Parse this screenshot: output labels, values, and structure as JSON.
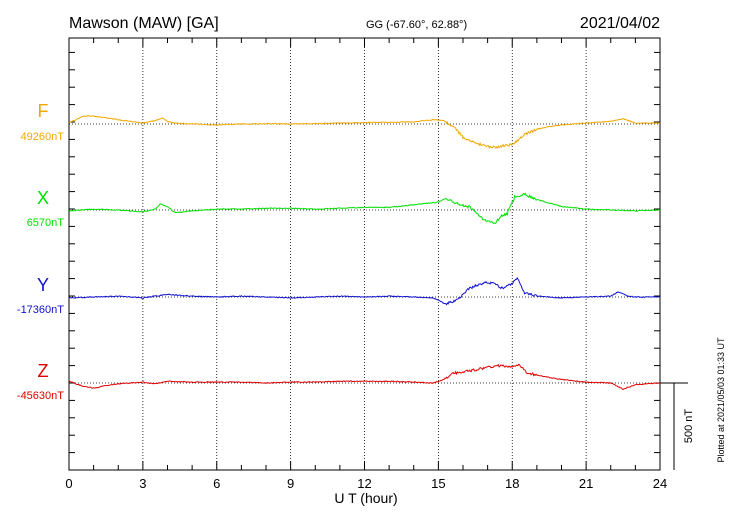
{
  "header": {
    "station": "Mawson (MAW)  [GA]",
    "coords": "GG (-67.60°,  62.88°)",
    "date": "2021/04/02"
  },
  "side_note": "Plotted at 2021/05/03 01:33 UT",
  "scale": {
    "label": "500 nT",
    "value_nt": 500
  },
  "chart_data": {
    "type": "line",
    "xlabel": "U T (hour)",
    "xlim": [
      0,
      24
    ],
    "xticks": [
      0,
      3,
      6,
      9,
      12,
      15,
      18,
      21,
      24
    ],
    "grid": true,
    "series": [
      {
        "name": "F",
        "baseline_label": "49260nT",
        "baseline_nt": 49260,
        "color": "#f0a800",
        "points": [
          [
            0,
            -8
          ],
          [
            0.6,
            -45
          ],
          [
            1.0,
            -45
          ],
          [
            1.5,
            -35
          ],
          [
            2.0,
            -25
          ],
          [
            2.5,
            -15
          ],
          [
            3.0,
            -5
          ],
          [
            3.5,
            -20
          ],
          [
            3.8,
            -35
          ],
          [
            4.0,
            -15
          ],
          [
            4.3,
            -5
          ],
          [
            5,
            0
          ],
          [
            6,
            5
          ],
          [
            7,
            0
          ],
          [
            8,
            -2
          ],
          [
            9,
            0
          ],
          [
            10,
            -2
          ],
          [
            11,
            -5
          ],
          [
            12,
            -8
          ],
          [
            13,
            -10
          ],
          [
            14,
            -12
          ],
          [
            14.8,
            -25
          ],
          [
            15.2,
            -20
          ],
          [
            15.6,
            15
          ],
          [
            16,
            75
          ],
          [
            16.5,
            110
          ],
          [
            17,
            130
          ],
          [
            17.3,
            135
          ],
          [
            17.6,
            125
          ],
          [
            18,
            120
          ],
          [
            18.5,
            60
          ],
          [
            19,
            30
          ],
          [
            19.5,
            15
          ],
          [
            20,
            5
          ],
          [
            21,
            -5
          ],
          [
            22,
            -15
          ],
          [
            22.5,
            -30
          ],
          [
            23,
            -5
          ],
          [
            24,
            -5
          ]
        ]
      },
      {
        "name": "X",
        "baseline_label": "6570nT",
        "baseline_nt": 6570,
        "color": "#00e000",
        "points": [
          [
            0,
            5
          ],
          [
            1,
            -5
          ],
          [
            2,
            0
          ],
          [
            3,
            10
          ],
          [
            3.5,
            -5
          ],
          [
            3.7,
            -35
          ],
          [
            4.0,
            -20
          ],
          [
            4.3,
            15
          ],
          [
            5,
            5
          ],
          [
            6,
            -5
          ],
          [
            7,
            -5
          ],
          [
            8,
            -10
          ],
          [
            9,
            -10
          ],
          [
            10,
            -5
          ],
          [
            11,
            -10
          ],
          [
            12,
            -15
          ],
          [
            13,
            -15
          ],
          [
            14,
            -30
          ],
          [
            15,
            -45
          ],
          [
            15.3,
            -65
          ],
          [
            15.8,
            -35
          ],
          [
            16.3,
            -15
          ],
          [
            16.8,
            50
          ],
          [
            17.3,
            80
          ],
          [
            17.5,
            40
          ],
          [
            17.8,
            20
          ],
          [
            18.1,
            -75
          ],
          [
            18.5,
            -90
          ],
          [
            19,
            -60
          ],
          [
            19.5,
            -40
          ],
          [
            20,
            -20
          ],
          [
            21,
            -5
          ],
          [
            22,
            0
          ],
          [
            23,
            5
          ],
          [
            24,
            0
          ]
        ]
      },
      {
        "name": "Y",
        "baseline_label": "-17360nT",
        "baseline_nt": -17360,
        "color": "#1010d0",
        "points": [
          [
            0,
            5
          ],
          [
            1,
            0
          ],
          [
            2,
            -5
          ],
          [
            3,
            5
          ],
          [
            4,
            -15
          ],
          [
            5,
            -5
          ],
          [
            6,
            0
          ],
          [
            7,
            -5
          ],
          [
            8,
            0
          ],
          [
            9,
            5
          ],
          [
            10,
            0
          ],
          [
            11,
            -5
          ],
          [
            12,
            0
          ],
          [
            13,
            -5
          ],
          [
            14,
            0
          ],
          [
            14.8,
            5
          ],
          [
            15.3,
            40
          ],
          [
            15.8,
            15
          ],
          [
            16.2,
            -45
          ],
          [
            16.6,
            -70
          ],
          [
            17.0,
            -85
          ],
          [
            17.3,
            -75
          ],
          [
            17.6,
            -50
          ],
          [
            18.0,
            -80
          ],
          [
            18.2,
            -105
          ],
          [
            18.5,
            -25
          ],
          [
            19,
            -5
          ],
          [
            20,
            5
          ],
          [
            21,
            0
          ],
          [
            22,
            -5
          ],
          [
            22.3,
            -30
          ],
          [
            22.7,
            -5
          ],
          [
            23,
            0
          ],
          [
            24,
            0
          ]
        ]
      },
      {
        "name": "Z",
        "baseline_label": "-45630nT",
        "baseline_nt": -45630,
        "color": "#e00000",
        "points": [
          [
            0,
            -10
          ],
          [
            0.5,
            15
          ],
          [
            1.0,
            30
          ],
          [
            1.5,
            15
          ],
          [
            2,
            5
          ],
          [
            3,
            -5
          ],
          [
            3.5,
            5
          ],
          [
            4,
            -10
          ],
          [
            5,
            -5
          ],
          [
            6,
            -5
          ],
          [
            7,
            -5
          ],
          [
            8,
            0
          ],
          [
            9,
            -5
          ],
          [
            10,
            -5
          ],
          [
            11,
            -10
          ],
          [
            12,
            -10
          ],
          [
            13,
            -10
          ],
          [
            14,
            -5
          ],
          [
            14.8,
            0
          ],
          [
            15.2,
            -20
          ],
          [
            15.6,
            -55
          ],
          [
            16,
            -65
          ],
          [
            16.5,
            -75
          ],
          [
            17,
            -90
          ],
          [
            17.5,
            -100
          ],
          [
            18,
            -95
          ],
          [
            18.3,
            -105
          ],
          [
            18.6,
            -60
          ],
          [
            19,
            -45
          ],
          [
            20,
            -20
          ],
          [
            21,
            -5
          ],
          [
            22,
            0
          ],
          [
            22.5,
            35
          ],
          [
            23,
            10
          ],
          [
            24,
            0
          ]
        ]
      }
    ]
  }
}
